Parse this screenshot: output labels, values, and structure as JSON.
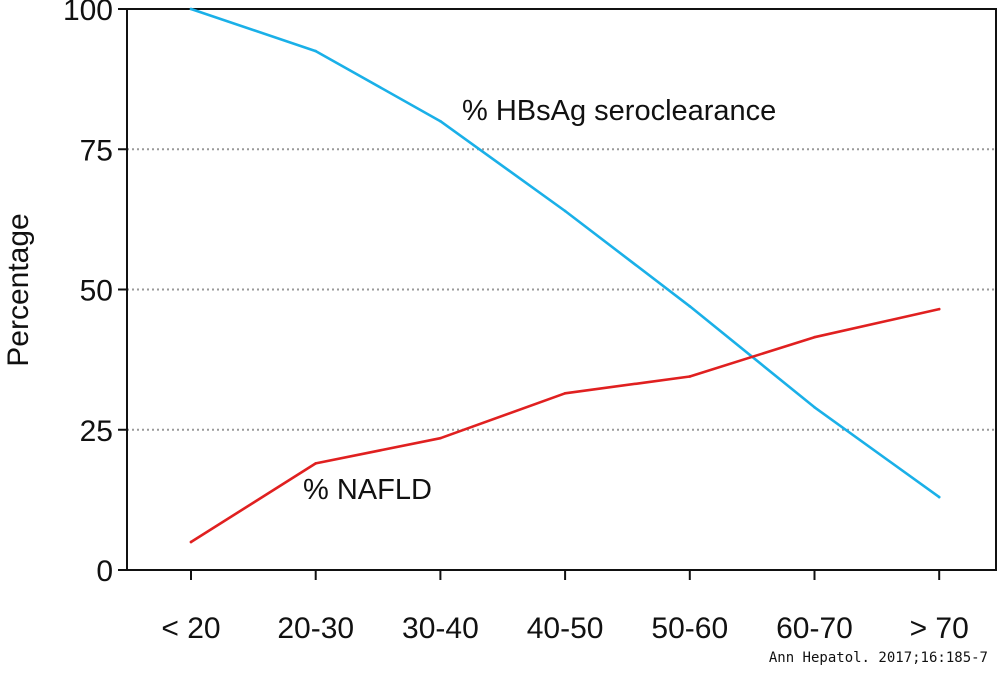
{
  "chart_data": {
    "type": "line",
    "title": "",
    "xlabel": "",
    "ylabel": "Percentage",
    "ylim": [
      0,
      100
    ],
    "yticks": [
      0,
      25,
      50,
      75,
      100
    ],
    "grid": "horizontal dotted at 25, 50, 75",
    "categories": [
      "< 20",
      "20-30",
      "30-40",
      "40-50",
      "50-60",
      "60-70",
      "> 70"
    ],
    "series": [
      {
        "name": "% HBsAg seroclearance",
        "color": "#1ab0e8",
        "values": [
          100,
          92.5,
          80,
          64,
          47,
          29,
          13
        ]
      },
      {
        "name": "% NAFLD",
        "color": "#e02020",
        "values": [
          5,
          19,
          23.5,
          31.5,
          34.5,
          41.5,
          46.5
        ]
      }
    ],
    "credit": "Ann Hepatol. 2017;16:185-7"
  }
}
